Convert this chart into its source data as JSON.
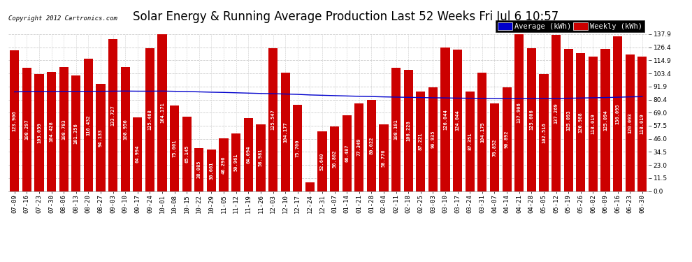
{
  "title": "Solar Energy & Running Average Production Last 52 Weeks Fri Jul 6 10:57",
  "copyright": "Copyright 2012 Cartronics.com",
  "legend_labels": [
    "Average (kWh)",
    "Weekly (kWh)"
  ],
  "legend_colors_bg": [
    "#0000cc",
    "#cc0000"
  ],
  "bar_color": "#cc0000",
  "line_color": "#0000cc",
  "background_color": "#ffffff",
  "plot_bg_color": "#ffffff",
  "ytick_values": [
    0.0,
    11.5,
    23.0,
    34.5,
    46.0,
    57.5,
    69.0,
    80.4,
    91.9,
    103.4,
    114.9,
    126.4,
    137.9
  ],
  "grid_color": "#cccccc",
  "categories": [
    "07-09",
    "07-16",
    "07-23",
    "07-30",
    "08-06",
    "08-13",
    "08-20",
    "08-27",
    "09-03",
    "09-10",
    "09-17",
    "09-24",
    "10-01",
    "10-08",
    "10-15",
    "10-22",
    "10-29",
    "11-05",
    "11-12",
    "11-19",
    "11-26",
    "12-03",
    "12-10",
    "12-17",
    "12-24",
    "12-31",
    "01-07",
    "01-14",
    "01-21",
    "01-28",
    "02-04",
    "02-11",
    "02-18",
    "02-25",
    "03-03",
    "03-10",
    "03-17",
    "03-24",
    "03-31",
    "04-07",
    "04-14",
    "04-21",
    "04-28",
    "05-05",
    "05-12",
    "05-19",
    "05-26",
    "06-02",
    "06-09",
    "06-16",
    "06-23",
    "06-30"
  ],
  "weekly_values": [
    123.906,
    108.297,
    103.059,
    104.428,
    108.783,
    101.356,
    116.432,
    94.133,
    133.727,
    108.956,
    64.994,
    125.468,
    164.171,
    75.001,
    65.145,
    38.085,
    36.661,
    46.296,
    50.961,
    64.094,
    58.981,
    125.547,
    104.177,
    75.7,
    8.022,
    52.64,
    56.802,
    66.487,
    77.349,
    80.022,
    58.776,
    108.101,
    106.228,
    87.221,
    90.935,
    126.044,
    124.044,
    87.351,
    104.175,
    76.852,
    90.892,
    137.906,
    125.606,
    102.516,
    137.269,
    125.093,
    120.988,
    118.019,
    125.094,
    136.095,
    120.093,
    118.019
  ],
  "average_values": [
    87.2,
    87.4,
    87.5,
    87.5,
    87.6,
    87.6,
    87.7,
    87.7,
    87.8,
    87.9,
    87.8,
    87.8,
    87.9,
    87.7,
    87.5,
    87.2,
    86.9,
    86.7,
    86.4,
    86.1,
    85.8,
    85.6,
    85.3,
    85.0,
    84.5,
    84.2,
    83.9,
    83.6,
    83.3,
    83.1,
    82.8,
    82.6,
    82.4,
    82.2,
    82.0,
    81.9,
    81.7,
    81.6,
    81.5,
    81.4,
    81.3,
    81.3,
    81.3,
    81.4,
    81.5,
    81.6,
    81.8,
    82.0,
    82.2,
    82.5,
    82.8,
    83.0
  ],
  "ylim": [
    0.0,
    137.9
  ],
  "bar_width": 0.75,
  "title_fontsize": 12,
  "tick_fontsize": 6.5,
  "value_fontsize": 5.0,
  "legend_fontsize": 7.5
}
